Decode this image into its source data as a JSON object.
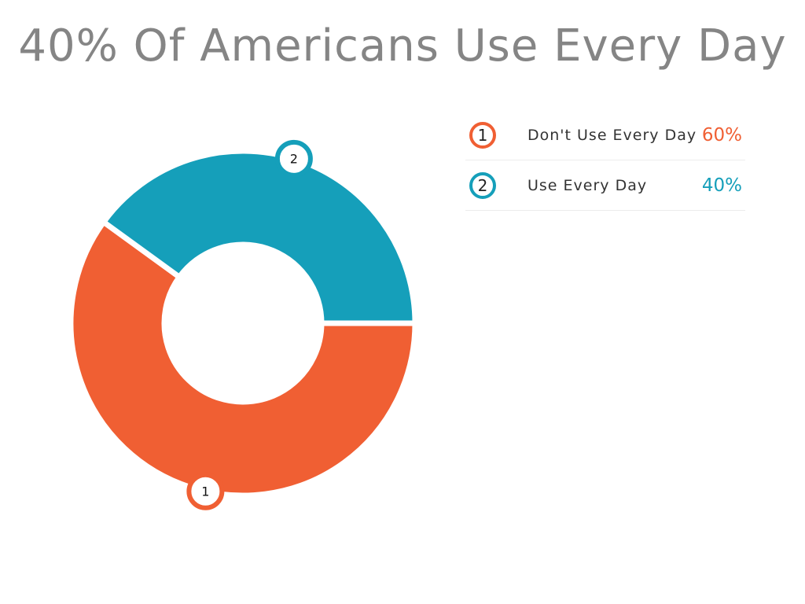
{
  "title": "40% Of Americans Use Every Day",
  "colors": {
    "orange": "#f05f33",
    "teal": "#159fba"
  },
  "chart_data": {
    "type": "pie",
    "title": "40% Of Americans Use Every Day",
    "series": [
      {
        "name": "Don't Use Every Day",
        "value": 60,
        "color": "#f05f33",
        "marker": "1",
        "value_label": "60%"
      },
      {
        "name": "Use Every Day",
        "value": 40,
        "color": "#159fba",
        "marker": "2",
        "value_label": "40%"
      }
    ],
    "legend_position": "right"
  },
  "legend": [
    {
      "marker": "1",
      "label": "Don't Use Every Day",
      "value": "60%",
      "color": "#f05f33"
    },
    {
      "marker": "2",
      "label": "Use Every Day",
      "value": "40%",
      "color": "#159fba"
    }
  ]
}
